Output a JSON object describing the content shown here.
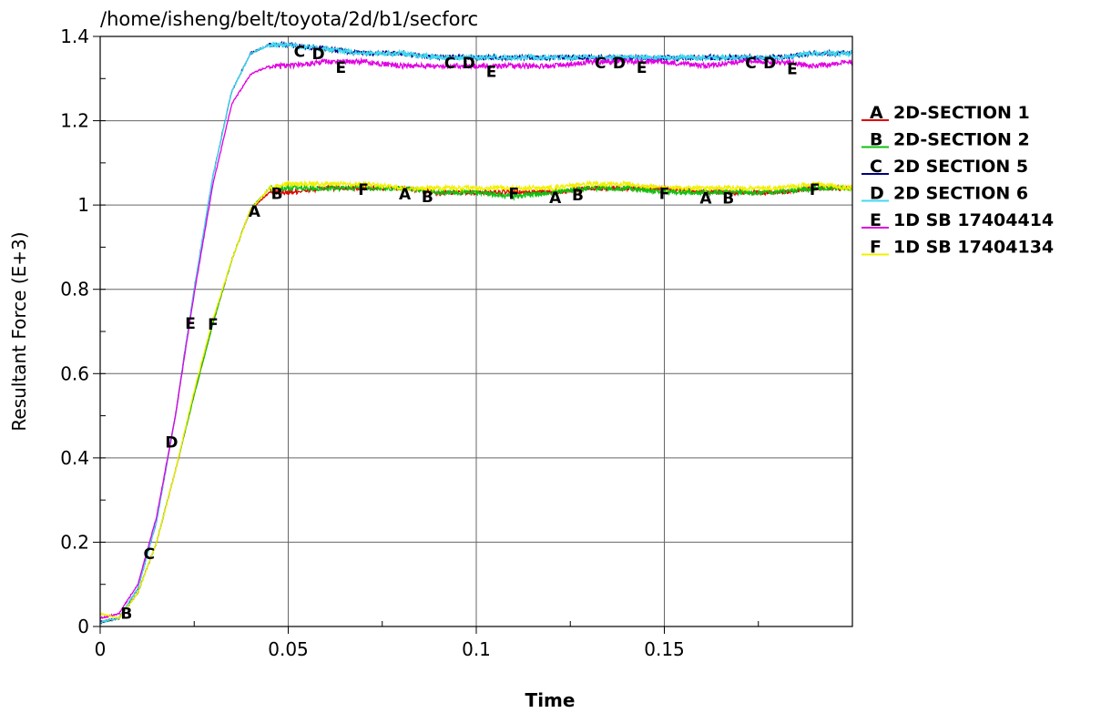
{
  "chart_data": {
    "type": "line",
    "title": "/home/isheng/belt/toyota/2d/b1/secforc",
    "xlabel": "Time",
    "ylabel": "Resultant Force (E+3)",
    "xlim": [
      0,
      0.2
    ],
    "ylim": [
      0,
      1.4
    ],
    "x_ticks": [
      0,
      0.05,
      0.1,
      0.15
    ],
    "x_tick_labels": [
      "0",
      "0.05",
      "0.1",
      "0.15"
    ],
    "y_ticks": [
      0,
      0.2,
      0.4,
      0.6,
      0.8,
      1.0,
      1.2,
      1.4
    ],
    "y_tick_labels": [
      "0",
      "0.2",
      "0.4",
      "0.6",
      "0.8",
      "1",
      "1.2",
      "1.4"
    ],
    "grid": true,
    "legend_position": "right",
    "series": [
      {
        "marker": "A",
        "name": "2D-SECTION 1",
        "color": "#e00000",
        "x": [
          0,
          0.005,
          0.01,
          0.015,
          0.02,
          0.025,
          0.03,
          0.035,
          0.04,
          0.045,
          0.05,
          0.06,
          0.07,
          0.08,
          0.09,
          0.1,
          0.11,
          0.12,
          0.13,
          0.14,
          0.15,
          0.16,
          0.17,
          0.18,
          0.19,
          0.2
        ],
        "y": [
          0.01,
          0.02,
          0.08,
          0.2,
          0.37,
          0.55,
          0.72,
          0.87,
          0.99,
          1.03,
          1.03,
          1.04,
          1.04,
          1.04,
          1.03,
          1.03,
          1.03,
          1.03,
          1.04,
          1.04,
          1.04,
          1.03,
          1.03,
          1.03,
          1.04,
          1.04
        ],
        "marker_x": [
          0.041,
          0.081,
          0.121,
          0.161
        ]
      },
      {
        "marker": "B",
        "name": "2D-SECTION 2",
        "color": "#10c010",
        "x": [
          0,
          0.005,
          0.01,
          0.015,
          0.02,
          0.025,
          0.03,
          0.035,
          0.04,
          0.045,
          0.05,
          0.06,
          0.07,
          0.08,
          0.09,
          0.1,
          0.11,
          0.12,
          0.13,
          0.14,
          0.15,
          0.16,
          0.17,
          0.18,
          0.19,
          0.2
        ],
        "y": [
          0.01,
          0.02,
          0.08,
          0.2,
          0.37,
          0.55,
          0.72,
          0.87,
          0.99,
          1.04,
          1.04,
          1.04,
          1.04,
          1.04,
          1.03,
          1.03,
          1.02,
          1.03,
          1.04,
          1.04,
          1.03,
          1.03,
          1.03,
          1.03,
          1.04,
          1.04
        ],
        "marker_x": [
          0.007,
          0.047,
          0.087,
          0.127,
          0.167
        ]
      },
      {
        "marker": "C",
        "name": "2D SECTION 5",
        "color": "#000080",
        "x": [
          0,
          0.005,
          0.01,
          0.015,
          0.02,
          0.025,
          0.03,
          0.035,
          0.04,
          0.045,
          0.05,
          0.06,
          0.07,
          0.08,
          0.09,
          0.1,
          0.11,
          0.12,
          0.13,
          0.14,
          0.15,
          0.16,
          0.17,
          0.18,
          0.19,
          0.2
        ],
        "y": [
          0.01,
          0.02,
          0.09,
          0.25,
          0.5,
          0.8,
          1.07,
          1.27,
          1.36,
          1.38,
          1.38,
          1.37,
          1.36,
          1.36,
          1.35,
          1.35,
          1.35,
          1.35,
          1.35,
          1.35,
          1.35,
          1.35,
          1.35,
          1.35,
          1.36,
          1.36
        ],
        "marker_x": [
          0.013,
          0.053,
          0.093,
          0.133,
          0.173
        ]
      },
      {
        "marker": "D",
        "name": "2D SECTION 6",
        "color": "#40d8f0",
        "x": [
          0,
          0.005,
          0.01,
          0.015,
          0.02,
          0.025,
          0.03,
          0.035,
          0.04,
          0.045,
          0.05,
          0.06,
          0.07,
          0.08,
          0.09,
          0.1,
          0.11,
          0.12,
          0.13,
          0.14,
          0.15,
          0.16,
          0.17,
          0.18,
          0.19,
          0.2
        ],
        "y": [
          0.01,
          0.02,
          0.09,
          0.25,
          0.5,
          0.8,
          1.07,
          1.27,
          1.36,
          1.38,
          1.38,
          1.37,
          1.36,
          1.36,
          1.35,
          1.35,
          1.35,
          1.35,
          1.35,
          1.35,
          1.35,
          1.35,
          1.35,
          1.35,
          1.36,
          1.36
        ],
        "marker_x": [
          0.019,
          0.058,
          0.098,
          0.138,
          0.178
        ]
      },
      {
        "marker": "E",
        "name": "1D SB 17404414",
        "color": "#e000e0",
        "x": [
          0,
          0.005,
          0.01,
          0.015,
          0.02,
          0.025,
          0.03,
          0.035,
          0.04,
          0.045,
          0.05,
          0.06,
          0.07,
          0.08,
          0.09,
          0.1,
          0.11,
          0.12,
          0.13,
          0.14,
          0.15,
          0.16,
          0.17,
          0.18,
          0.19,
          0.2
        ],
        "y": [
          0.02,
          0.03,
          0.1,
          0.26,
          0.5,
          0.79,
          1.05,
          1.24,
          1.31,
          1.33,
          1.33,
          1.34,
          1.34,
          1.33,
          1.33,
          1.33,
          1.33,
          1.33,
          1.34,
          1.34,
          1.34,
          1.33,
          1.34,
          1.34,
          1.33,
          1.34
        ],
        "marker_x": [
          0.024,
          0.064,
          0.104,
          0.144,
          0.184
        ]
      },
      {
        "marker": "F",
        "name": "1D SB 17404134",
        "color": "#f0f000",
        "x": [
          0,
          0.005,
          0.01,
          0.015,
          0.02,
          0.025,
          0.03,
          0.035,
          0.04,
          0.045,
          0.05,
          0.06,
          0.07,
          0.08,
          0.09,
          0.1,
          0.11,
          0.12,
          0.13,
          0.14,
          0.15,
          0.16,
          0.17,
          0.18,
          0.19,
          0.2
        ],
        "y": [
          0.03,
          0.02,
          0.08,
          0.2,
          0.37,
          0.56,
          0.73,
          0.87,
          0.99,
          1.04,
          1.05,
          1.05,
          1.05,
          1.04,
          1.04,
          1.04,
          1.04,
          1.04,
          1.05,
          1.05,
          1.04,
          1.04,
          1.04,
          1.04,
          1.05,
          1.04
        ],
        "marker_x": [
          0.03,
          0.07,
          0.11,
          0.15,
          0.19
        ]
      }
    ]
  }
}
